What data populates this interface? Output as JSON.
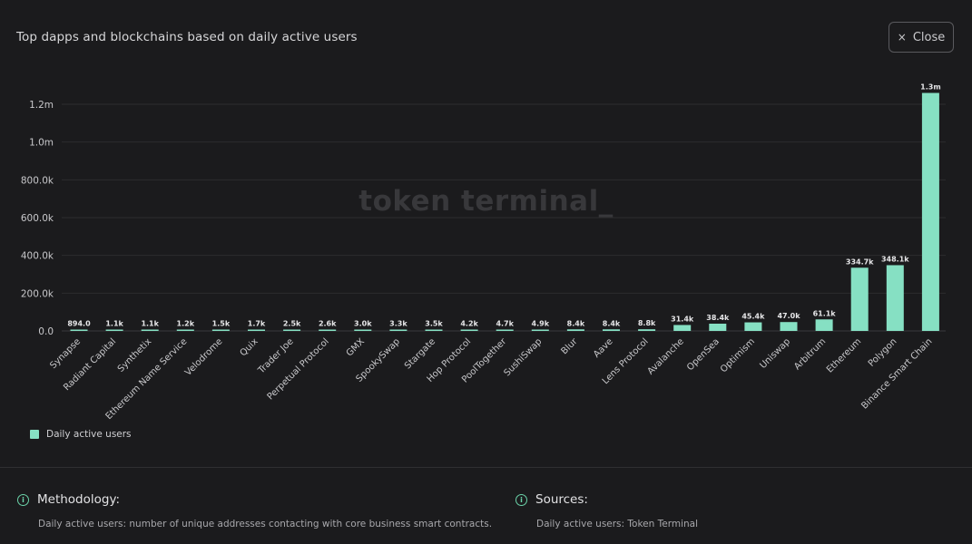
{
  "header": {
    "title": "Top dapps and blockchains based on daily active users"
  },
  "close_button": {
    "label": "Close",
    "icon": "close-icon"
  },
  "watermark": "token terminal_",
  "legend": {
    "label": "Daily active users",
    "color": "#86e0c3"
  },
  "chart_data": {
    "type": "bar",
    "title": "Top dapps and blockchains based on daily active users",
    "categories": [
      "Synapse",
      "Radiant Capital",
      "Synthetix",
      "Ethereum Name Service",
      "Velodrome",
      "Quix",
      "Trader Joe",
      "Perpetual Protocol",
      "GMX",
      "SpookySwap",
      "Stargate",
      "Hop Protocol",
      "PoolTogether",
      "SushiSwap",
      "Blur",
      "Aave",
      "Lens Protocol",
      "Avalanche",
      "OpenSea",
      "Optimism",
      "Uniswap",
      "Arbitrum",
      "Ethereum",
      "Polygon",
      "Binance Smart Chain"
    ],
    "series": [
      {
        "name": "Daily active users",
        "values": [
          894,
          1100,
          1100,
          1200,
          1500,
          1700,
          2500,
          2600,
          3000,
          3300,
          3500,
          4200,
          4700,
          4900,
          8400,
          8400,
          8800,
          31400,
          38400,
          45400,
          47000,
          61100,
          334700,
          348100,
          1260000
        ],
        "labels": [
          "894.0",
          "1.1k",
          "1.1k",
          "1.2k",
          "1.5k",
          "1.7k",
          "2.5k",
          "2.6k",
          "3.0k",
          "3.3k",
          "3.5k",
          "4.2k",
          "4.7k",
          "4.9k",
          "8.4k",
          "8.4k",
          "8.8k",
          "31.4k",
          "38.4k",
          "45.4k",
          "47.0k",
          "61.1k",
          "334.7k",
          "348.1k",
          "1.3m"
        ]
      }
    ],
    "yticks": [
      0,
      200000,
      400000,
      600000,
      800000,
      1000000,
      1200000
    ],
    "ytick_labels": [
      "0.0",
      "200.0k",
      "400.0k",
      "600.0k",
      "800.0k",
      "1.0m",
      "1.2m"
    ],
    "ylim": [
      0,
      1260000
    ],
    "bar_color": "#86e0c3",
    "grid": true,
    "legend_position": "bottom-left"
  },
  "footer": {
    "methodology": {
      "title": "Methodology:",
      "text": "Daily active users: number of unique addresses contacting with core business smart contracts."
    },
    "sources": {
      "title": "Sources:",
      "text": "Daily active users: Token Terminal"
    }
  }
}
